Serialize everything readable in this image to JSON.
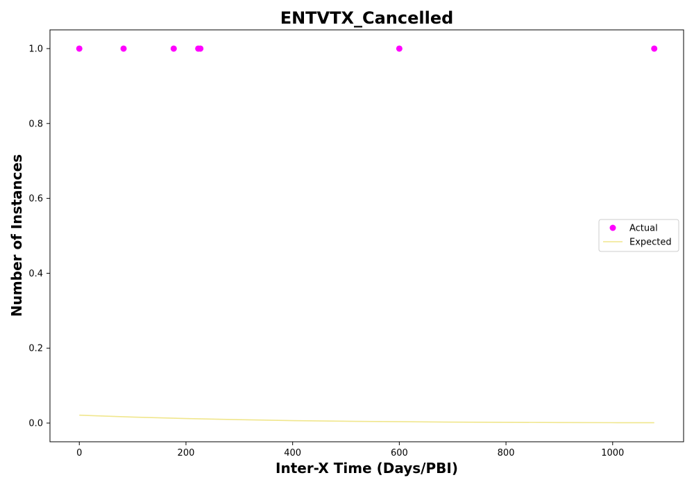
{
  "chart_data": {
    "type": "scatter",
    "title": "ENTVTX_Cancelled",
    "xlabel": "Inter-X Time (Days/PBI)",
    "ylabel": "Number of Instances",
    "xlim": [
      -55,
      1133
    ],
    "ylim": [
      -0.05,
      1.05
    ],
    "x_ticks": [
      0,
      200,
      400,
      600,
      800,
      1000
    ],
    "x_tick_labels": [
      "0",
      "200",
      "400",
      "600",
      "800",
      "1000"
    ],
    "y_ticks": [
      0.0,
      0.2,
      0.4,
      0.6,
      0.8,
      1.0
    ],
    "y_tick_labels": [
      "0.0",
      "0.2",
      "0.4",
      "0.6",
      "0.8",
      "1.0"
    ],
    "grid": false,
    "legend_position": "center-right",
    "series": [
      {
        "name": "Actual",
        "kind": "scatter",
        "color": "#ff00ff",
        "points": [
          {
            "x": 0,
            "y": 1.0
          },
          {
            "x": 83,
            "y": 1.0
          },
          {
            "x": 177,
            "y": 1.0
          },
          {
            "x": 223,
            "y": 1.0
          },
          {
            "x": 227,
            "y": 1.0
          },
          {
            "x": 600,
            "y": 1.0
          },
          {
            "x": 1078,
            "y": 1.0
          }
        ]
      },
      {
        "name": "Expected",
        "kind": "line",
        "color": "#f0e68c",
        "points": [
          {
            "x": 0,
            "y": 0.021
          },
          {
            "x": 100,
            "y": 0.016
          },
          {
            "x": 200,
            "y": 0.012
          },
          {
            "x": 300,
            "y": 0.009
          },
          {
            "x": 400,
            "y": 0.0065
          },
          {
            "x": 500,
            "y": 0.0048
          },
          {
            "x": 600,
            "y": 0.0036
          },
          {
            "x": 700,
            "y": 0.0026
          },
          {
            "x": 800,
            "y": 0.0019
          },
          {
            "x": 900,
            "y": 0.0014
          },
          {
            "x": 1000,
            "y": 0.001
          },
          {
            "x": 1078,
            "y": 0.0008
          }
        ]
      }
    ]
  }
}
